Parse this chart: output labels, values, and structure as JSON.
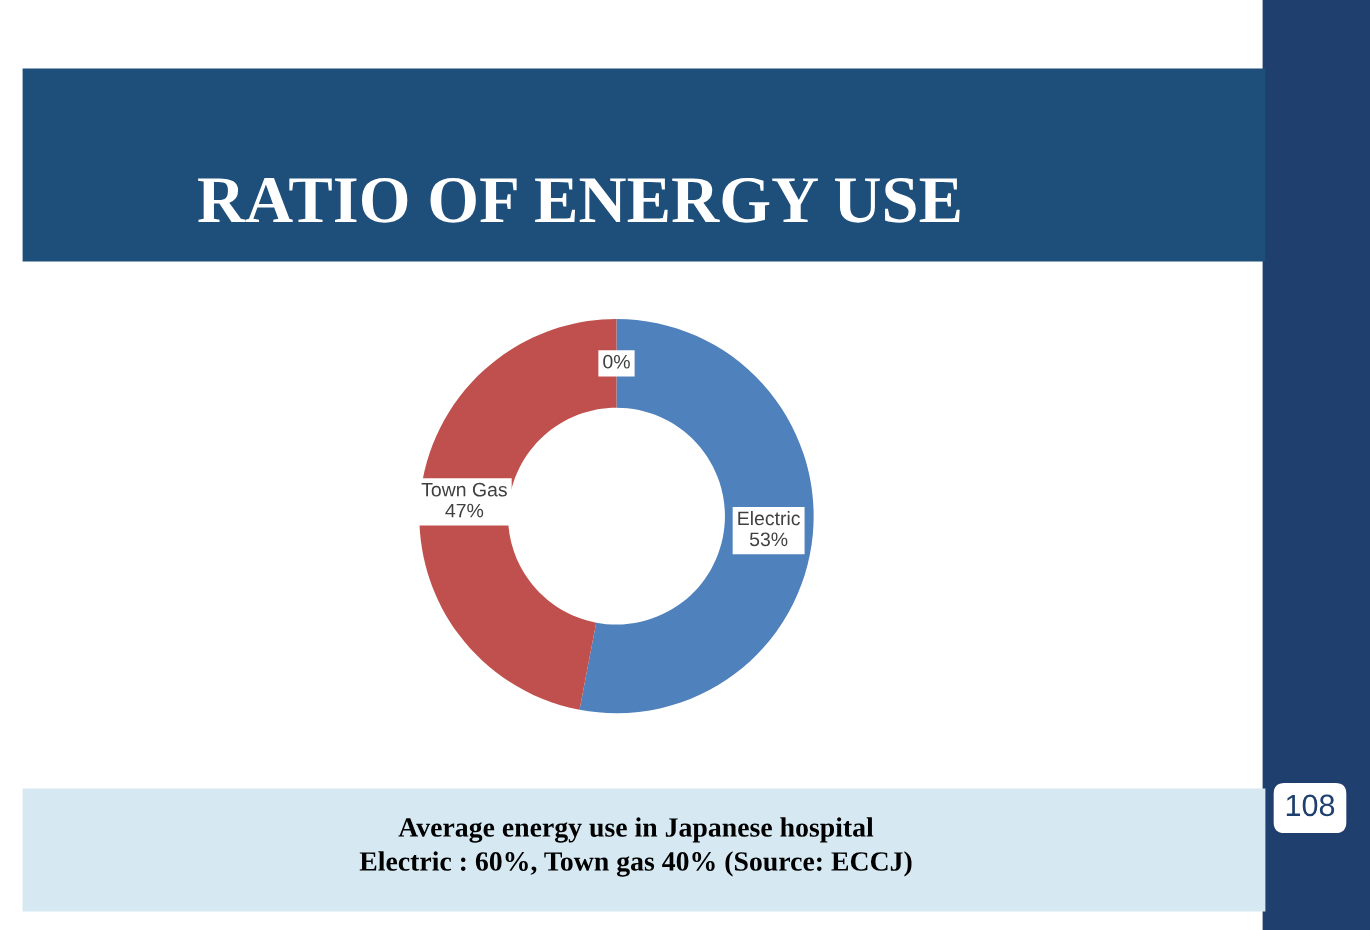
{
  "chart_data": {
    "type": "donut",
    "title": "RATIO OF ENERGY USE",
    "categories": [
      "Electric",
      "Town Gas",
      null
    ],
    "values": [
      53,
      47,
      0
    ],
    "colors": [
      "#4f81bd",
      "#c0504d",
      "#9bbb59"
    ],
    "value_labels": [
      "53%",
      "47%",
      "0%"
    ],
    "annotations": [
      "Average energy use in Japanese hospital",
      "Electric : 60%, Town gas 40% (Source: ECCJ)",
      "108"
    ]
  }
}
